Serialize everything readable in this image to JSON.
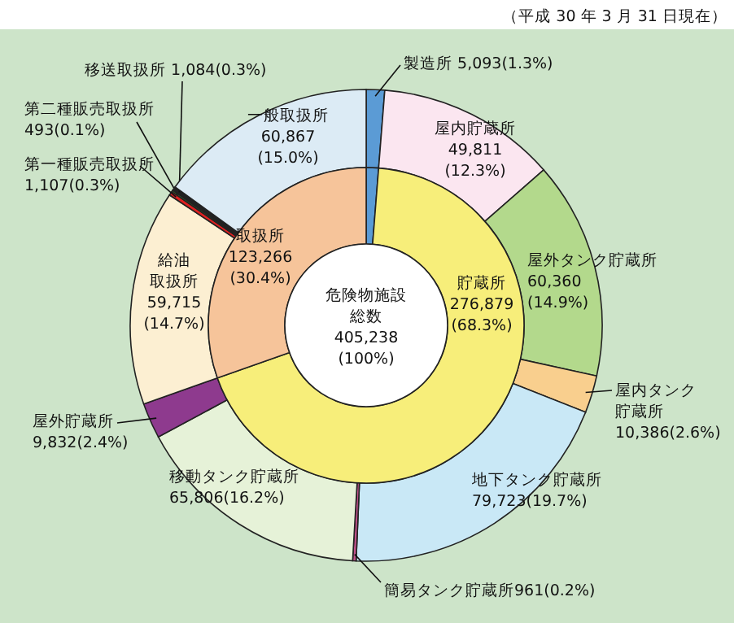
{
  "chart_data": [
    {
      "type": "donut",
      "subtitle": "（平成 30 年 3 月 31 日現在）",
      "categories": [
        "製造所",
        "屋内貯蔵所",
        "屋外タンク貯蔵所",
        "屋内タンク貯蔵所",
        "地下タンク貯蔵所",
        "簡易タンク貯蔵所",
        "移動タンク貯蔵所",
        "屋外貯蔵所",
        "給油取扱所",
        "第一種販売取扱所",
        "第二種販売取扱所",
        "移送取扱所",
        "一般取扱所"
      ],
      "values": [
        5093,
        49811,
        60360,
        10386,
        79723,
        961,
        65806,
        9832,
        59715,
        1107,
        493,
        1084,
        60867
      ],
      "value_labels": [
        "5,093(1.3%)",
        "49,811(12.3%)",
        "60,360(14.9%)",
        "10,386(2.6%)",
        "79,723(19.7%)",
        "961(0.2%)",
        "65,806(16.2%)",
        "9,832(2.4%)",
        "59,715(14.7%)",
        "1,107(0.3%)",
        "493(0.1%)",
        "1,084(0.3%)",
        "60,867(15.0%)"
      ],
      "colors": [
        "#5b9bd5",
        "#fbe6f0",
        "#b3d98c",
        "#f9cf8e",
        "#c9e8f6",
        "#c0508a",
        "#e6f2d8",
        "#8e3a8e",
        "#fcefd2",
        "#e02020",
        "#3a7a2a",
        "#222222",
        "#dcebf5"
      ]
    },
    {
      "type": "donut",
      "title": "危険物施設総数",
      "annotations": [
        "405,238",
        "(100%)"
      ],
      "categories": [
        null,
        "貯蔵所",
        "取扱所"
      ],
      "values": [
        5093,
        276879,
        123266
      ],
      "value_labels": [
        null,
        "276,879(68.3%)",
        "123,266(30.4%)"
      ],
      "colors": [
        "#5b9bd5",
        "#f7ee7a",
        "#f6c49a"
      ]
    }
  ]
}
